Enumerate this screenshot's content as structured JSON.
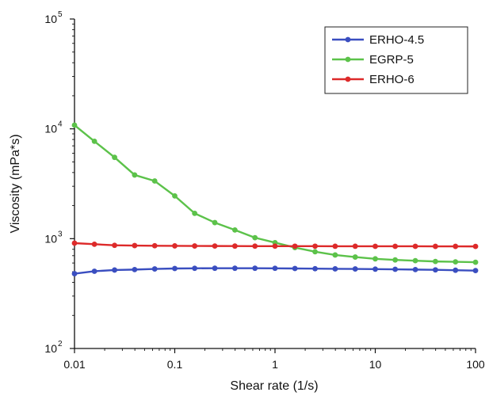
{
  "chart_data": {
    "type": "line",
    "title": "",
    "xlabel": "Shear rate (1/s)",
    "ylabel": "Viscosity (mPa*s)",
    "xscale": "log",
    "yscale": "log",
    "xlim": [
      0.01,
      100
    ],
    "ylim": [
      100,
      100000
    ],
    "x_ticks": [
      0.01,
      0.1,
      1,
      10,
      100
    ],
    "x_tick_labels": [
      "0.01",
      "0.1",
      "1",
      "10",
      "100"
    ],
    "y_ticks": [
      100,
      1000,
      10000,
      100000
    ],
    "y_tick_labels": [
      {
        "base": "10",
        "exp": "2"
      },
      {
        "base": "10",
        "exp": "3"
      },
      {
        "base": "10",
        "exp": "4"
      },
      {
        "base": "10",
        "exp": "5"
      }
    ],
    "grid": false,
    "legend_position": "top-right",
    "x": [
      0.01,
      0.0158,
      0.0251,
      0.0398,
      0.0631,
      0.1,
      0.158,
      0.251,
      0.398,
      0.631,
      1,
      1.58,
      2.51,
      3.98,
      6.31,
      10,
      15.8,
      25.1,
      39.8,
      63.1,
      100
    ],
    "series": [
      {
        "name": "ERHO-4.5",
        "color": "#3a4ec0",
        "values": [
          480,
          505,
          518,
          523,
          530,
          535,
          537,
          538,
          538,
          538,
          537,
          535,
          533,
          531,
          530,
          528,
          526,
          523,
          520,
          516,
          512
        ]
      },
      {
        "name": "EGRP-5",
        "color": "#5cc24a",
        "values": [
          10800,
          7700,
          5500,
          3800,
          3350,
          2450,
          1700,
          1400,
          1200,
          1020,
          920,
          830,
          760,
          710,
          680,
          655,
          640,
          630,
          620,
          615,
          610
        ]
      },
      {
        "name": "ERHO-6",
        "color": "#dd2a2a",
        "values": [
          910,
          890,
          870,
          865,
          862,
          860,
          858,
          857,
          856,
          855,
          855,
          854,
          854,
          853,
          853,
          852,
          852,
          852,
          851,
          851,
          850
        ]
      }
    ]
  }
}
